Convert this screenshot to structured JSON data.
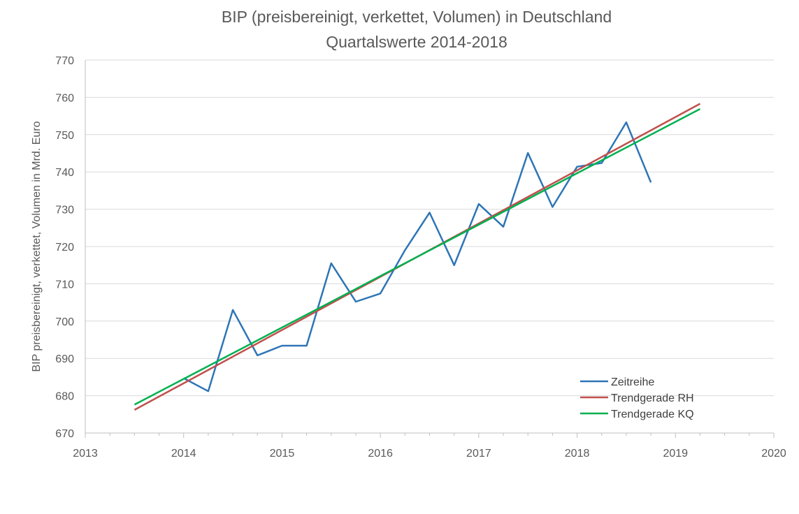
{
  "chart_data": {
    "type": "line",
    "title": "BIP (preisbereinigt, verkettet, Volumen) in Deutschland",
    "subtitle": "Quartalswerte 2014-2018",
    "xlabel": "",
    "ylabel": "BIP preisbereinigt, verkettet, Volumen in Mrd. Euro",
    "xlim": [
      2013,
      2020
    ],
    "ylim": [
      670,
      770
    ],
    "x_ticks": [
      2013,
      2014,
      2015,
      2016,
      2017,
      2018,
      2019,
      2020
    ],
    "y_ticks": [
      670,
      680,
      690,
      700,
      710,
      720,
      730,
      740,
      750,
      760,
      770
    ],
    "grid": "horizontal",
    "legend_position": "bottom-right",
    "series": [
      {
        "name": "Zeitreihe",
        "color": "#2E75B6",
        "x": [
          2014.0,
          2014.25,
          2014.5,
          2014.75,
          2015.0,
          2015.25,
          2015.5,
          2015.75,
          2016.0,
          2016.25,
          2016.5,
          2016.75,
          2017.0,
          2017.25,
          2017.5,
          2017.75,
          2018.0,
          2018.25,
          2018.5,
          2018.75
        ],
        "y": [
          684.7,
          681.2,
          703.0,
          690.8,
          693.4,
          693.4,
          715.5,
          705.2,
          707.4,
          719.0,
          729.1,
          715.0,
          731.4,
          725.3,
          745.1,
          730.6,
          741.4,
          742.4,
          753.3,
          737.2
        ]
      },
      {
        "name": "Trendgerade RH",
        "color": "#C0504D",
        "x": [
          2013.5,
          2019.25
        ],
        "y": [
          676.2,
          758.3
        ]
      },
      {
        "name": "Trendgerade KQ",
        "color": "#00B050",
        "x": [
          2013.5,
          2019.25
        ],
        "y": [
          677.6,
          756.9
        ]
      }
    ]
  }
}
